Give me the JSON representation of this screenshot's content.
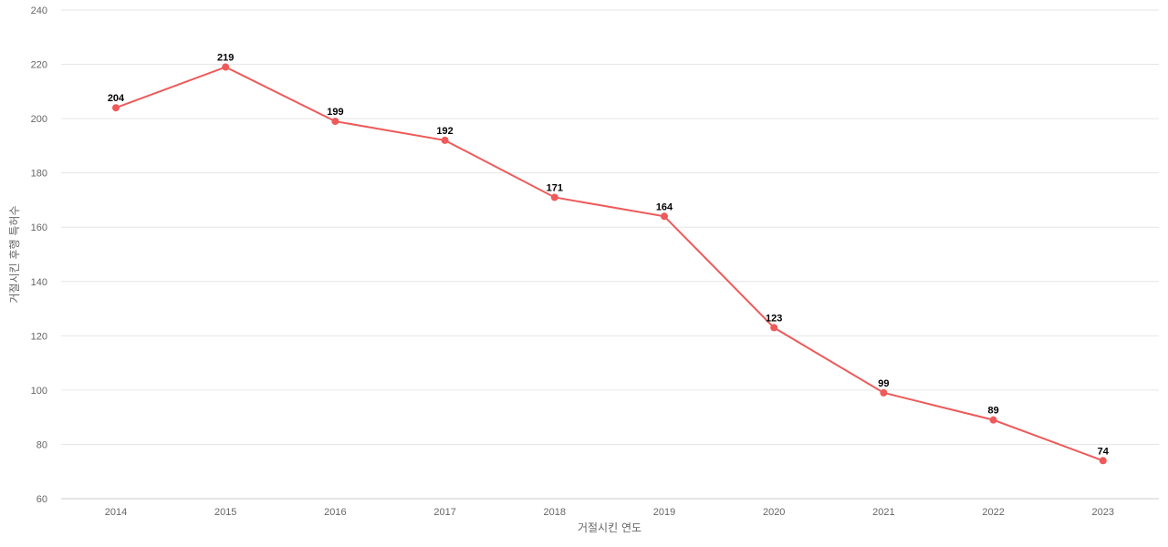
{
  "chart_data": {
    "type": "line",
    "title": "",
    "xlabel": "거절시킨 연도",
    "ylabel": "거절시킨 후행 특허수",
    "categories": [
      "2014",
      "2015",
      "2016",
      "2017",
      "2018",
      "2019",
      "2020",
      "2021",
      "2022",
      "2023"
    ],
    "series": [
      {
        "values": [
          204,
          219,
          199,
          192,
          171,
          164,
          123,
          99,
          89,
          74
        ],
        "color": "#ee5a5a"
      }
    ],
    "ylim": [
      60,
      240
    ],
    "yticks": [
      60,
      80,
      100,
      120,
      140,
      160,
      180,
      200,
      220,
      240
    ],
    "grid": true,
    "data_labels": true,
    "legend": "none"
  }
}
